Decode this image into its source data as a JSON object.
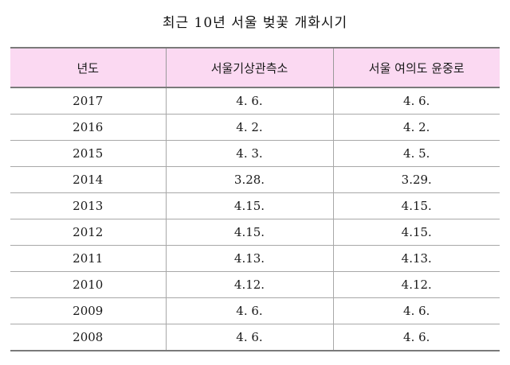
{
  "title": "최근 10년 서울 벚꽃 개화시기",
  "table": {
    "headers": [
      "년도",
      "서울기상관측소",
      "서울 여의도 윤중로"
    ],
    "rows": [
      [
        "2017",
        "4. 6.",
        "4. 6."
      ],
      [
        "2016",
        "4. 2.",
        "4. 2."
      ],
      [
        "2015",
        "4. 3.",
        "4. 5."
      ],
      [
        "2014",
        "3.28.",
        "3.29."
      ],
      [
        "2013",
        "4.15.",
        "4.15."
      ],
      [
        "2012",
        "4.15.",
        "4.15."
      ],
      [
        "2011",
        "4.13.",
        "4.13."
      ],
      [
        "2010",
        "4.12.",
        "4.12."
      ],
      [
        "2009",
        "4. 6.",
        "4. 6."
      ],
      [
        "2008",
        "4. 6.",
        "4. 6."
      ]
    ]
  },
  "colors": {
    "header_background": "#fbd9f2",
    "rule": "#7a7a7a"
  }
}
